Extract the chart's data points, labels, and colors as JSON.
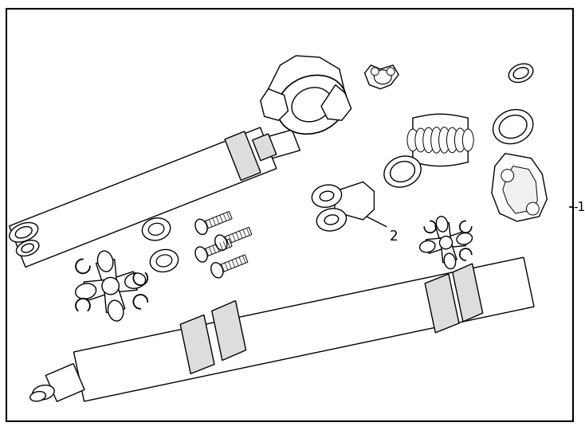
{
  "background_color": "#ffffff",
  "border_color": "#000000",
  "line_color": "#000000",
  "line_width": 1.0,
  "fig_width": 7.34,
  "fig_height": 5.4,
  "dpi": 100,
  "label_1": "-1",
  "label_2": "2"
}
